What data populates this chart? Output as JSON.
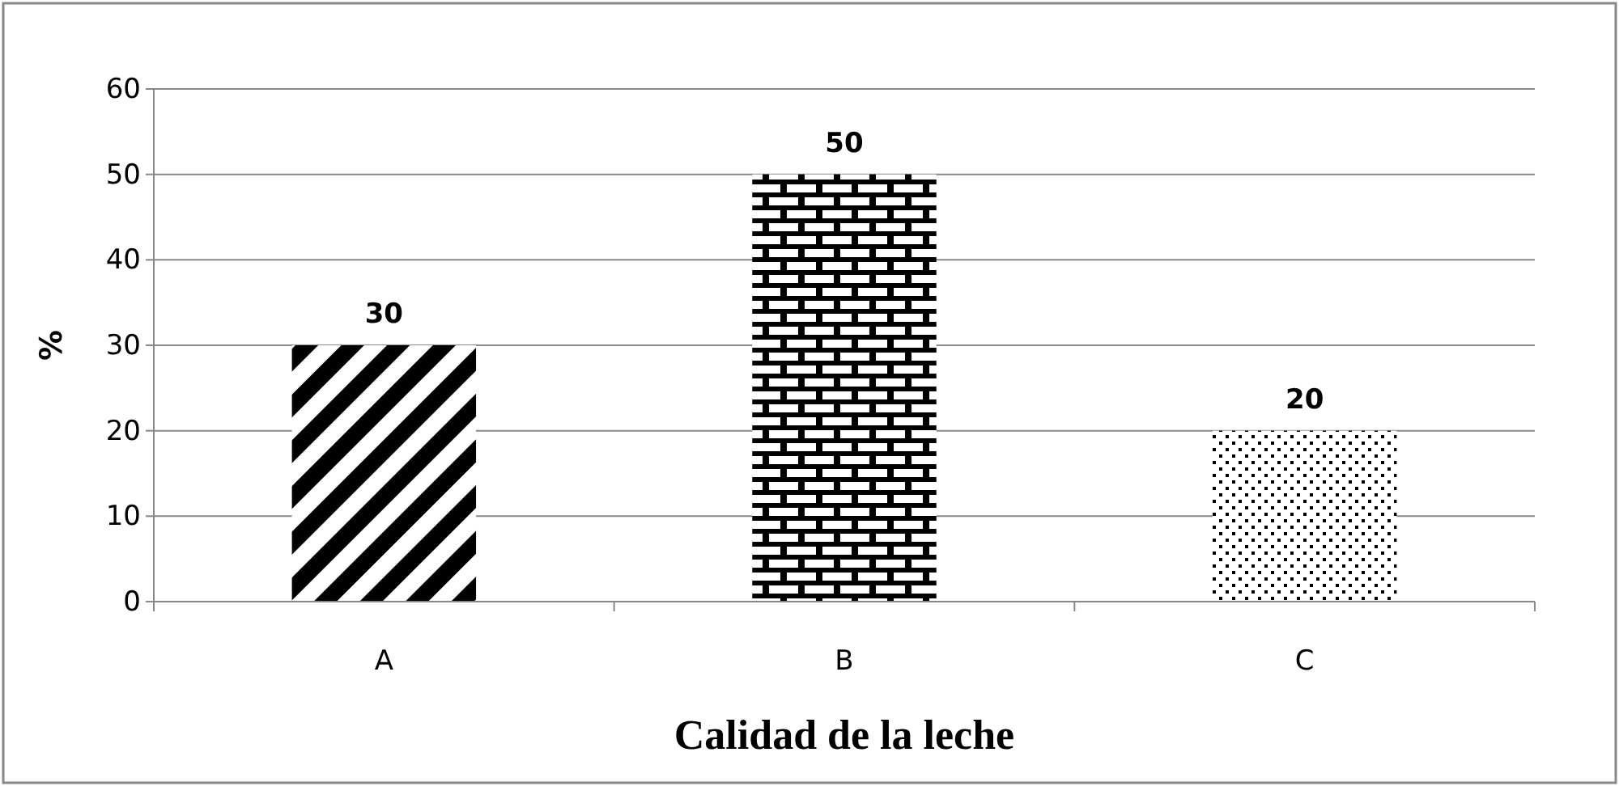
{
  "chart_data": {
    "type": "bar",
    "xlabel": "Calidad de la leche",
    "ylabel": "%",
    "categories": [
      "A",
      "B",
      "C"
    ],
    "values": [
      30,
      50,
      20
    ],
    "colors": [
      "#000000",
      "#000000",
      "#000000"
    ],
    "ylim": [
      0,
      60
    ],
    "yticks": [
      0,
      10,
      20,
      30,
      40,
      50,
      60
    ],
    "grid": "y",
    "data_labels": true
  }
}
